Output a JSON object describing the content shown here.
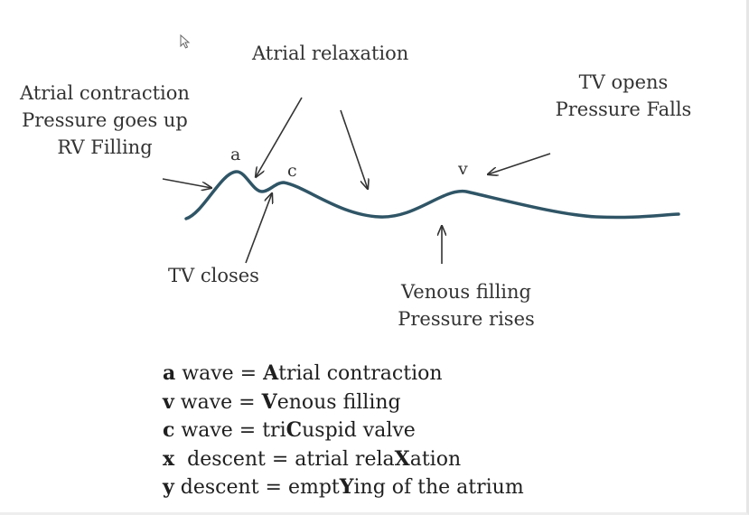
{
  "labels": {
    "atrial_contraction": [
      "Atrial contraction",
      "Pressure goes up",
      "RV Filling"
    ],
    "atrial_relaxation": "Atrial relaxation",
    "tv_opens": [
      "TV opens",
      "Pressure Falls"
    ],
    "tv_closes": "TV closes",
    "venous_filling": [
      "Venous filling",
      "Pressure rises"
    ]
  },
  "wave_letters": {
    "a": "a",
    "c": "c",
    "v": "v"
  },
  "legend": [
    {
      "key": "a",
      "mid": " wave = ",
      "cap": "A",
      "rest": "trial contraction"
    },
    {
      "key": "v",
      "mid": " wave = ",
      "cap": "V",
      "rest": "enous filling"
    },
    {
      "key": "c",
      "mid": " wave = tri",
      "cap": "C",
      "rest": "uspid valve"
    },
    {
      "key": "x",
      "mid": "  descent = atrial rela",
      "cap": "X",
      "rest": "ation"
    },
    {
      "key": "y",
      "mid": " descent = empt",
      "cap": "Y",
      "rest": "ing of the atrium"
    }
  ],
  "colors": {
    "wave": "#2f5566",
    "arrow": "#333333",
    "text": "#222222"
  },
  "icons": {
    "cursor": "mouse-pointer-icon"
  }
}
